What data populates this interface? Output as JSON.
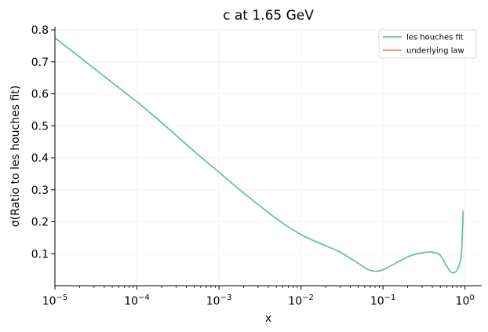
{
  "chart_data": {
    "type": "line",
    "title": "c at 1.65 GeV",
    "xlabel": "x",
    "ylabel": "σ(Ratio to les houches fit)",
    "xscale": "log",
    "xlim": [
      1e-05,
      1.6
    ],
    "ylim": [
      0.0,
      0.81
    ],
    "x_ticks": [
      {
        "value": 1e-05,
        "mantissa": "10",
        "exponent": "−5"
      },
      {
        "value": 0.0001,
        "mantissa": "10",
        "exponent": "−4"
      },
      {
        "value": 0.001,
        "mantissa": "10",
        "exponent": "−3"
      },
      {
        "value": 0.01,
        "mantissa": "10",
        "exponent": "−2"
      },
      {
        "value": 0.1,
        "mantissa": "10",
        "exponent": "−1"
      },
      {
        "value": 1,
        "mantissa": "10",
        "exponent": "0"
      }
    ],
    "y_ticks": [
      {
        "value": 0.1,
        "label": "0.1"
      },
      {
        "value": 0.2,
        "label": "0.2"
      },
      {
        "value": 0.3,
        "label": "0.3"
      },
      {
        "value": 0.4,
        "label": "0.4"
      },
      {
        "value": 0.5,
        "label": "0.5"
      },
      {
        "value": 0.6,
        "label": "0.6"
      },
      {
        "value": 0.7,
        "label": "0.7"
      },
      {
        "value": 0.8,
        "label": "0.8"
      }
    ],
    "grid": true,
    "legend_position": "top-right",
    "series": [
      {
        "name": "les houches fit",
        "color": "#66c2a5",
        "points": [
          [
            1e-05,
            0.775
          ],
          [
            2e-05,
            0.715
          ],
          [
            5e-05,
            0.635
          ],
          [
            0.0001,
            0.575
          ],
          [
            0.0002,
            0.51
          ],
          [
            0.0005,
            0.42
          ],
          [
            0.001,
            0.355
          ],
          [
            0.002,
            0.29
          ],
          [
            0.005,
            0.21
          ],
          [
            0.01,
            0.16
          ],
          [
            0.02,
            0.125
          ],
          [
            0.03,
            0.105
          ],
          [
            0.05,
            0.07
          ],
          [
            0.07,
            0.048
          ],
          [
            0.1,
            0.05
          ],
          [
            0.2,
            0.09
          ],
          [
            0.3,
            0.103
          ],
          [
            0.4,
            0.105
          ],
          [
            0.5,
            0.095
          ],
          [
            0.6,
            0.06
          ],
          [
            0.7,
            0.04
          ],
          [
            0.8,
            0.05
          ],
          [
            0.9,
            0.095
          ],
          [
            0.95,
            0.235
          ]
        ]
      },
      {
        "name": "underlying law",
        "color": "#fc8d62",
        "points": []
      }
    ]
  }
}
